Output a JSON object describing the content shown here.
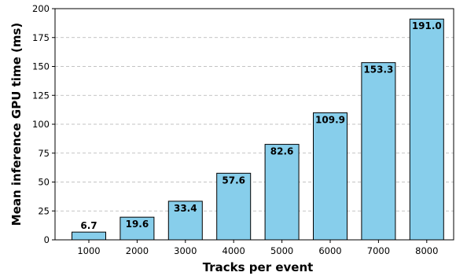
{
  "chart_data": {
    "type": "bar",
    "categories": [
      "1000",
      "2000",
      "3000",
      "4000",
      "5000",
      "6000",
      "7000",
      "8000"
    ],
    "values": [
      6.7,
      19.6,
      33.4,
      57.6,
      82.6,
      109.9,
      153.3,
      191.0
    ],
    "value_labels": [
      "6.7",
      "19.6",
      "33.4",
      "57.6",
      "82.6",
      "109.9",
      "153.3",
      "191.0"
    ],
    "xlabel": "Tracks per event",
    "ylabel": "Mean inference GPU time (ms)",
    "ylim": [
      0,
      200
    ],
    "yticks": [
      0,
      25,
      50,
      75,
      100,
      125,
      150,
      175,
      200
    ],
    "grid": "horizontal dashed",
    "bar_color": "#87CEEB",
    "edge_color": "#000000"
  }
}
